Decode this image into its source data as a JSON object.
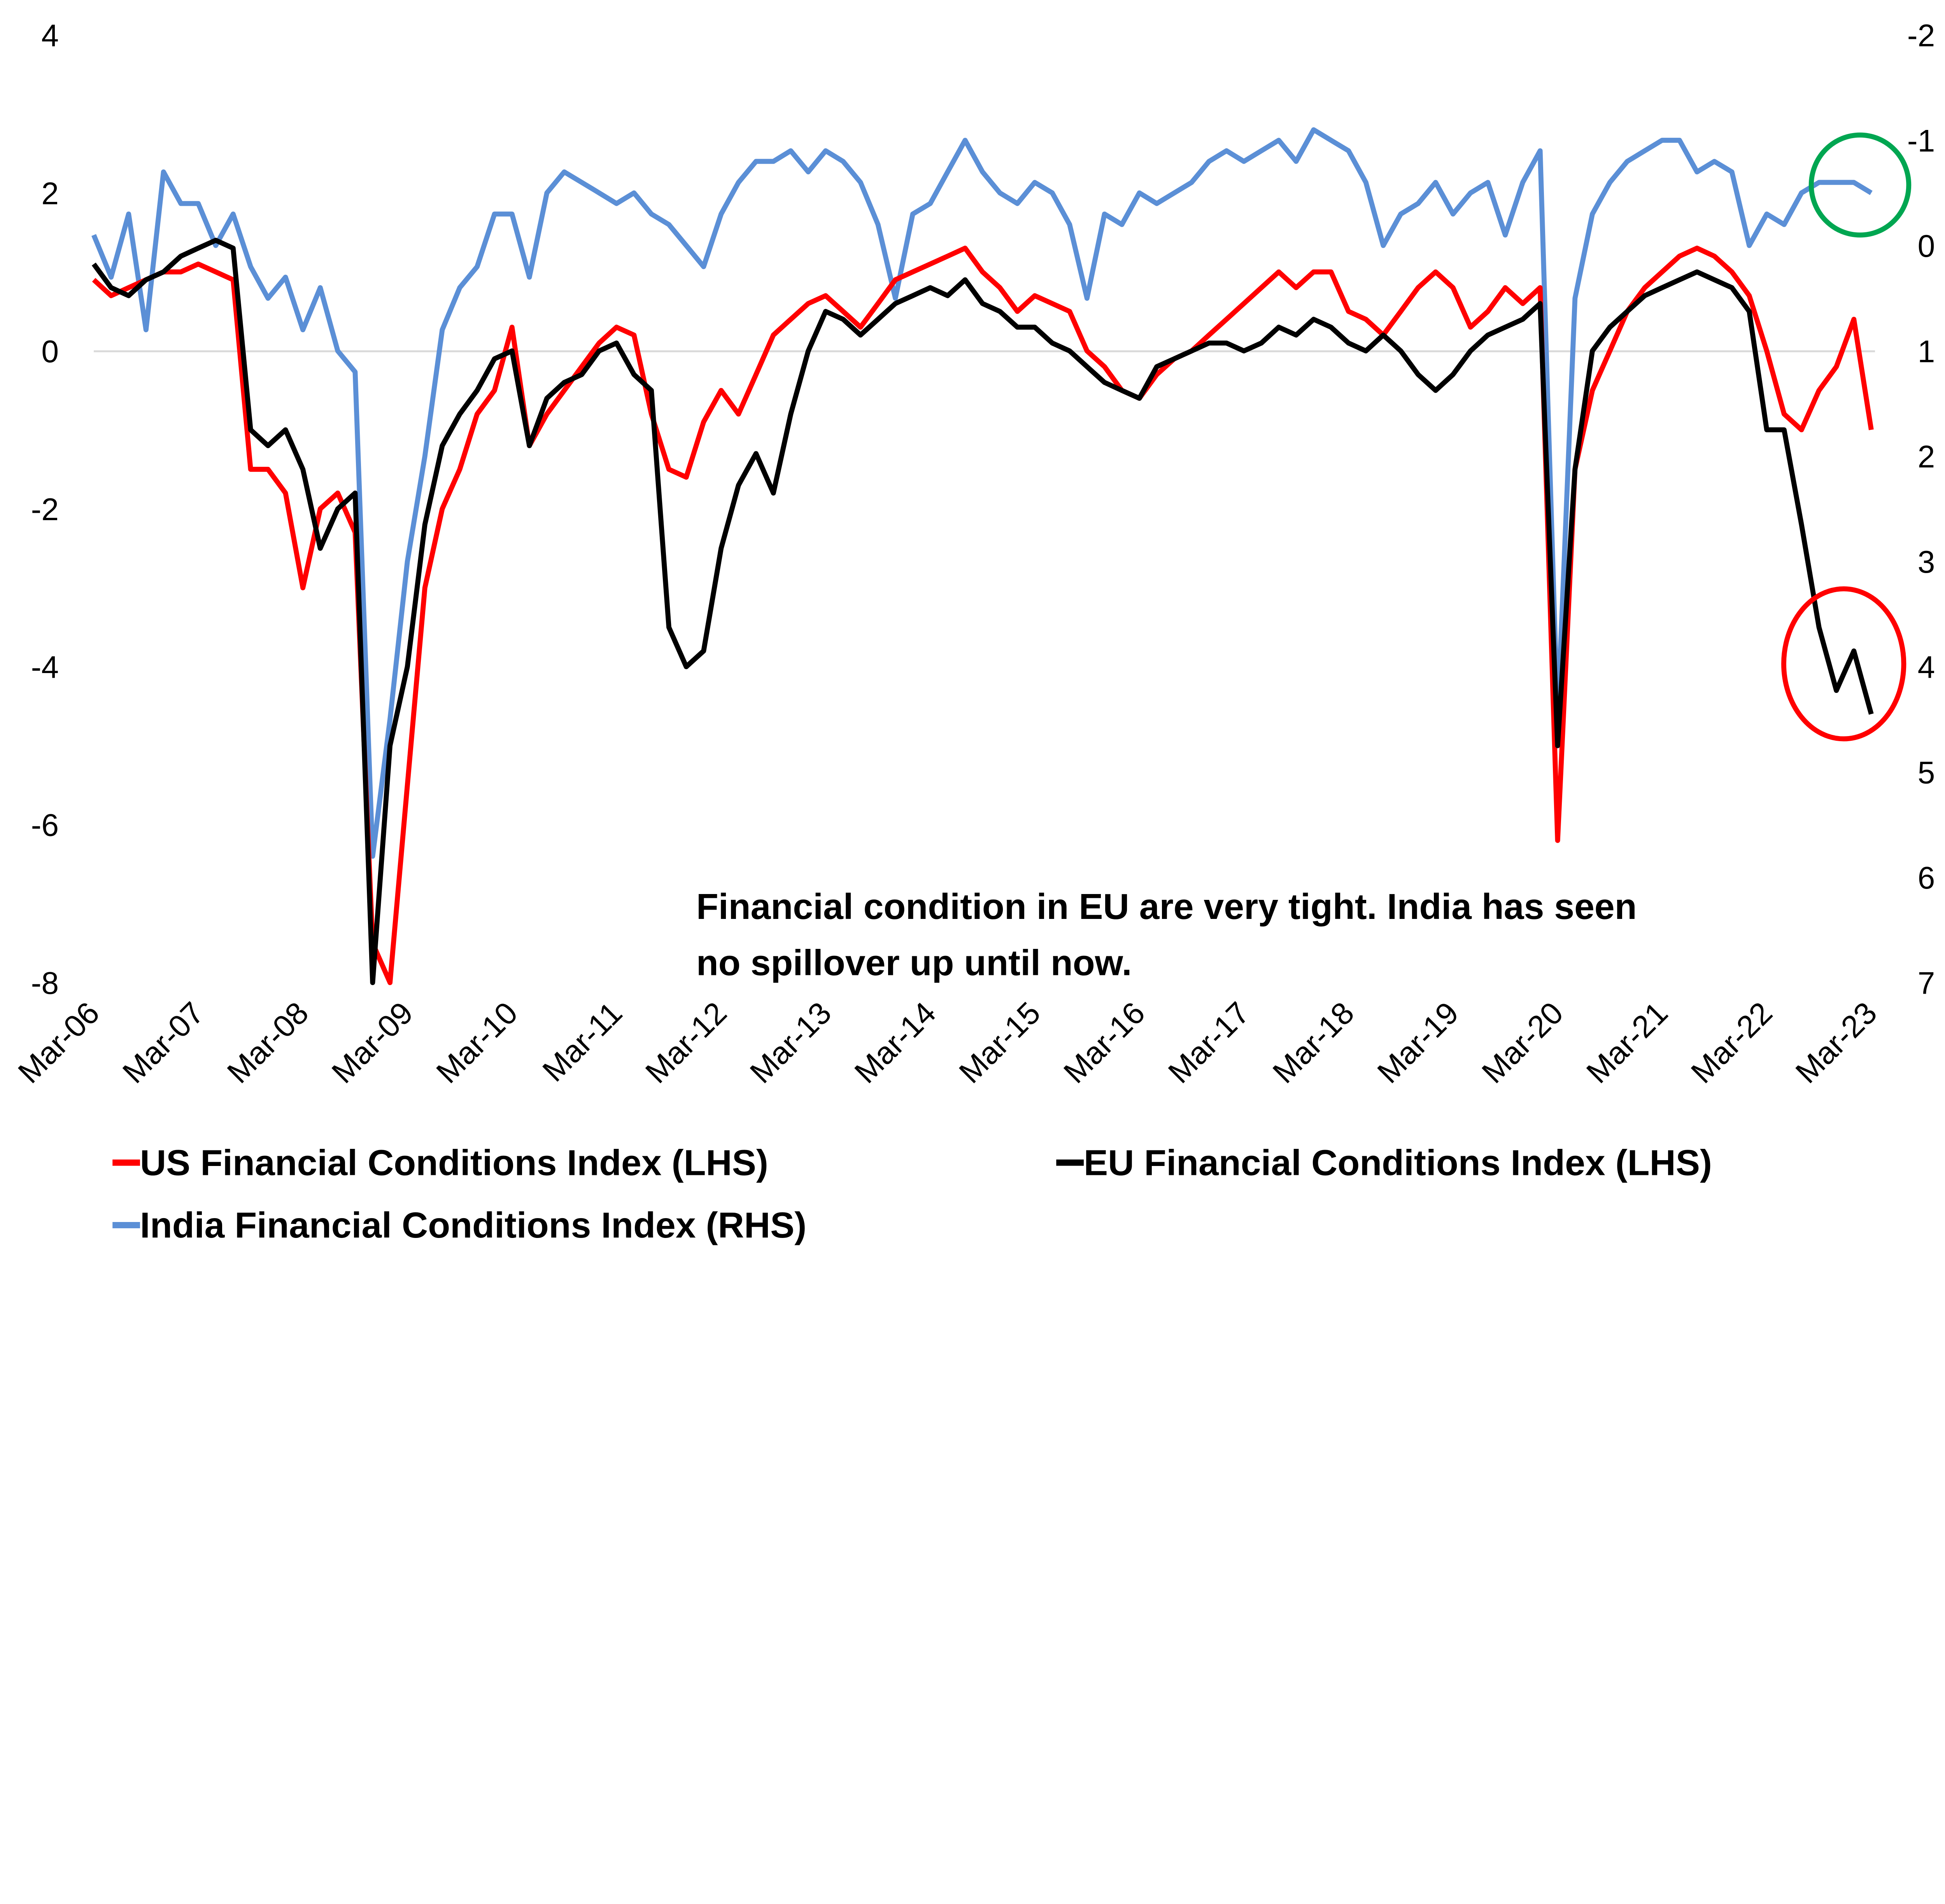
{
  "chart_data": {
    "type": "line",
    "title": "",
    "x_tick_labels": [
      "Mar-06",
      "Mar-07",
      "Mar-08",
      "Mar-09",
      "Mar-10",
      "Mar-11",
      "Mar-12",
      "Mar-13",
      "Mar-14",
      "Mar-15",
      "Mar-16",
      "Mar-17",
      "Mar-18",
      "Mar-19",
      "Mar-20",
      "Mar-21",
      "Mar-22",
      "Mar-23"
    ],
    "x_start": "2006-03",
    "x_step_months": 2,
    "left_axis": {
      "ticks": [
        "4",
        "2",
        "0",
        "-2",
        "-4",
        "-6",
        "-8"
      ],
      "range": [
        -8,
        4
      ]
    },
    "right_axis": {
      "ticks": [
        "-2",
        "-1",
        "0",
        "1",
        "2",
        "3",
        "4",
        "5",
        "6",
        "7"
      ],
      "range": [
        -2,
        7
      ],
      "inverted": true
    },
    "grid": false,
    "legend_placement": "bottom",
    "series": [
      {
        "name": "US Financial Conditions Index (LHS)",
        "axis": "left",
        "color": "#ff0000",
        "values": [
          0.9,
          0.7,
          0.8,
          0.9,
          1.0,
          1.0,
          1.1,
          1.0,
          0.9,
          -1.5,
          -1.5,
          -1.8,
          -3.0,
          -2.0,
          -1.8,
          -2.3,
          -7.5,
          -8.0,
          -5.5,
          -3.0,
          -2.0,
          -1.5,
          -0.8,
          -0.5,
          0.3,
          -1.2,
          -0.8,
          -0.5,
          -0.2,
          0.1,
          0.3,
          0.2,
          -0.8,
          -1.5,
          -1.6,
          -0.9,
          -0.5,
          -0.8,
          -0.3,
          0.2,
          0.4,
          0.6,
          0.7,
          0.5,
          0.3,
          0.6,
          0.9,
          1.0,
          1.1,
          1.2,
          1.3,
          1.0,
          0.8,
          0.5,
          0.7,
          0.6,
          0.5,
          0.0,
          -0.2,
          -0.5,
          -0.6,
          -0.3,
          -0.1,
          0.0,
          0.2,
          0.4,
          0.6,
          0.8,
          1.0,
          0.8,
          1.0,
          1.0,
          0.5,
          0.4,
          0.2,
          0.5,
          0.8,
          1.0,
          0.8,
          0.3,
          0.5,
          0.8,
          0.6,
          0.8,
          -6.2,
          -1.5,
          -0.5,
          0.0,
          0.5,
          0.8,
          1.0,
          1.2,
          1.3,
          1.2,
          1.0,
          0.7,
          0.0,
          -0.8,
          -1.0,
          -0.5,
          -0.2,
          0.4,
          -1.0
        ]
      },
      {
        "name": "EU Financial Conditions Index (LHS)",
        "axis": "left",
        "color": "#000000",
        "values": [
          1.1,
          0.8,
          0.7,
          0.9,
          1.0,
          1.2,
          1.3,
          1.4,
          1.3,
          -1.0,
          -1.2,
          -1.0,
          -1.5,
          -2.5,
          -2.0,
          -1.8,
          -8.0,
          -5.0,
          -4.0,
          -2.2,
          -1.2,
          -0.8,
          -0.5,
          -0.1,
          0.0,
          -1.2,
          -0.6,
          -0.4,
          -0.3,
          0.0,
          0.1,
          -0.3,
          -0.5,
          -3.5,
          -4.0,
          -3.8,
          -2.5,
          -1.7,
          -1.3,
          -1.8,
          -0.8,
          0.0,
          0.5,
          0.4,
          0.2,
          0.4,
          0.6,
          0.7,
          0.8,
          0.7,
          0.9,
          0.6,
          0.5,
          0.3,
          0.3,
          0.1,
          0.0,
          -0.2,
          -0.4,
          -0.5,
          -0.6,
          -0.2,
          -0.1,
          0.0,
          0.1,
          0.1,
          0.0,
          0.1,
          0.3,
          0.2,
          0.4,
          0.3,
          0.1,
          0.0,
          0.2,
          0.0,
          -0.3,
          -0.5,
          -0.3,
          0.0,
          0.2,
          0.3,
          0.4,
          0.6,
          -5.0,
          -1.5,
          0.0,
          0.3,
          0.5,
          0.7,
          0.8,
          0.9,
          1.0,
          0.9,
          0.8,
          0.5,
          -1.0,
          -1.0,
          -2.2,
          -3.5,
          -4.3,
          -3.8,
          -4.6
        ]
      },
      {
        "name": "India Financial Conditions Index (RHS)",
        "axis": "right",
        "color": "#5b8fd6",
        "values": [
          -0.1,
          0.3,
          -0.3,
          0.8,
          -0.7,
          -0.4,
          -0.4,
          0.0,
          -0.3,
          0.2,
          0.5,
          0.3,
          0.8,
          0.4,
          1.0,
          1.2,
          5.8,
          4.5,
          3.0,
          2.0,
          0.8,
          0.4,
          0.2,
          -0.3,
          -0.3,
          0.3,
          -0.5,
          -0.7,
          -0.6,
          -0.5,
          -0.4,
          -0.5,
          -0.3,
          -0.2,
          0.0,
          0.2,
          -0.3,
          -0.6,
          -0.8,
          -0.8,
          -0.9,
          -0.7,
          -0.9,
          -0.8,
          -0.6,
          -0.2,
          0.5,
          -0.3,
          -0.4,
          -0.7,
          -1.0,
          -0.7,
          -0.5,
          -0.4,
          -0.6,
          -0.5,
          -0.2,
          0.5,
          -0.3,
          -0.2,
          -0.5,
          -0.4,
          -0.5,
          -0.6,
          -0.8,
          -0.9,
          -0.8,
          -0.9,
          -1.0,
          -0.8,
          -1.1,
          -1.0,
          -0.9,
          -0.6,
          0.0,
          -0.3,
          -0.4,
          -0.6,
          -0.3,
          -0.5,
          -0.6,
          -0.1,
          -0.6,
          -0.9,
          4.5,
          0.5,
          -0.3,
          -0.6,
          -0.8,
          -0.9,
          -1.0,
          -1.0,
          -0.7,
          -0.8,
          -0.7,
          0.0,
          -0.3,
          -0.2,
          -0.5,
          -0.6,
          -0.6,
          -0.6,
          -0.5
        ]
      }
    ],
    "annotations": [
      {
        "text_lines": [
          "Financial condition in EU are very tight. India has seen",
          "no spillover up until now."
        ]
      },
      {
        "shape": "circle",
        "color": "#00a651",
        "highlights": "India Financial Conditions Index (RHS)"
      },
      {
        "shape": "circle",
        "color": "#ff0000",
        "highlights": "EU Financial Conditions Index (LHS)"
      }
    ]
  }
}
